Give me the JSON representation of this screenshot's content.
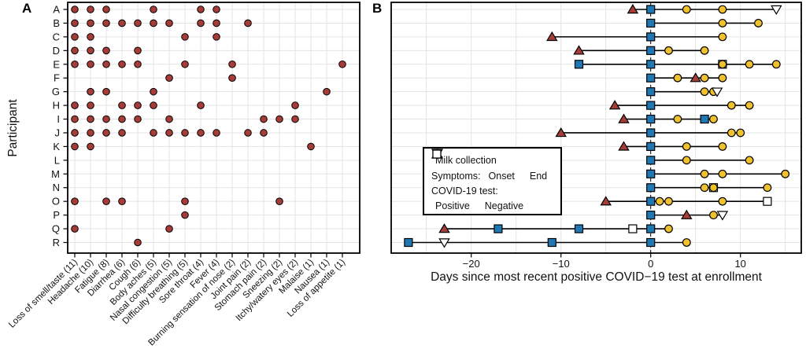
{
  "panels": {
    "a_label": "A",
    "b_label": "B"
  },
  "colors": {
    "symptom_dot": "#A63C38",
    "milk": "#F0C12E",
    "onset": "#A63C38",
    "end_fill": "#FFFFFF",
    "positive": "#1F78B4",
    "negative": "#FFFFFF",
    "outline": "#000000",
    "grid": "#E3E3E3"
  },
  "chart_data": [
    {
      "type": "scatter",
      "title": "",
      "ylabel": "Participant",
      "y_categories": [
        "A",
        "B",
        "C",
        "D",
        "E",
        "F",
        "G",
        "H",
        "I",
        "J",
        "K",
        "L",
        "M",
        "N",
        "O",
        "P",
        "Q",
        "R"
      ],
      "x_categories": [
        "Loss of smell/taste (11)",
        "Headache (10)",
        "Fatigue (8)",
        "Diarrhea (6)",
        "Cough (6)",
        "Body aches (5)",
        "Nasal congestion (5)",
        "Difficulty breathing (5)",
        "Sore throat (4)",
        "Fever (4)",
        "Burning sensation of nose (2)",
        "Joint pain (2)",
        "Stomach pain (2)",
        "Sneezing (2)",
        "Itchy/watery eyes (2)",
        "Malaise (1)",
        "Nausea (1)",
        "Loss of appetite (1)"
      ],
      "points": {
        "A": [
          0,
          1,
          2,
          5,
          8,
          9
        ],
        "B": [
          0,
          1,
          2,
          3,
          4,
          5,
          6,
          8,
          9,
          11
        ],
        "C": [
          0,
          1,
          7,
          9
        ],
        "D": [
          0,
          1,
          2,
          4
        ],
        "E": [
          0,
          1,
          2,
          3,
          4,
          7,
          10,
          17
        ],
        "F": [
          6,
          10
        ],
        "G": [
          1,
          2,
          5,
          16
        ],
        "H": [
          0,
          1,
          3,
          4,
          5,
          8,
          14
        ],
        "I": [
          0,
          1,
          2,
          3,
          4,
          6,
          12,
          13,
          14
        ],
        "J": [
          0,
          1,
          2,
          3,
          5,
          6,
          7,
          8,
          9,
          11,
          12
        ],
        "K": [
          0,
          1,
          15
        ],
        "L": [],
        "M": [],
        "N": [],
        "O": [
          0,
          2,
          3,
          7,
          13
        ],
        "P": [
          7
        ],
        "Q": [
          0,
          6
        ],
        "R": [
          4
        ]
      }
    },
    {
      "type": "timeline",
      "xlabel": "Days since most recent positive COVID−19 test at enrollment",
      "xlim": [
        -28.9,
        16.8
      ],
      "gridline_step_days": 5,
      "zero_reference_line": 0,
      "ticks": [
        {
          "value": -20,
          "label": "−20"
        },
        {
          "value": -10,
          "label": "−10"
        },
        {
          "value": 0,
          "label": "0"
        },
        {
          "value": 10,
          "label": "10"
        }
      ],
      "legend": {
        "milk": "Milk collection",
        "symptoms_label": "Symptoms:",
        "onset": "Onset",
        "end": "End",
        "test_label": "COVID-19 test:",
        "positive": "Positive",
        "negative": "Negative"
      },
      "rows": [
        {
          "participant": "A",
          "milk": [
            4,
            8
          ],
          "onset": [
            -2
          ],
          "end": [
            14
          ],
          "positive": [
            0
          ],
          "negative": []
        },
        {
          "participant": "B",
          "milk": [
            8,
            12
          ],
          "onset": [],
          "end": [],
          "positive": [
            0
          ],
          "negative": []
        },
        {
          "participant": "C",
          "milk": [
            8
          ],
          "onset": [
            -11
          ],
          "end": [],
          "positive": [
            0
          ],
          "negative": []
        },
        {
          "participant": "D",
          "milk": [
            2,
            6
          ],
          "onset": [
            -8
          ],
          "end": [],
          "positive": [
            0
          ],
          "negative": []
        },
        {
          "participant": "E",
          "milk": [
            8,
            11,
            14
          ],
          "onset": [],
          "end": [],
          "positive": [
            -8,
            0
          ],
          "negative": [
            8
          ]
        },
        {
          "participant": "F",
          "milk": [
            3,
            6,
            8
          ],
          "onset": [
            5
          ],
          "end": [],
          "positive": [
            0
          ],
          "negative": []
        },
        {
          "participant": "G",
          "milk": [
            6,
            7
          ],
          "onset": [],
          "end": [
            7.4
          ],
          "positive": [
            0
          ],
          "negative": []
        },
        {
          "participant": "H",
          "milk": [
            9,
            11
          ],
          "onset": [
            -4
          ],
          "end": [],
          "positive": [
            0
          ],
          "negative": []
        },
        {
          "participant": "I",
          "milk": [
            3,
            7
          ],
          "onset": [
            -3
          ],
          "end": [],
          "positive": [
            0,
            6
          ],
          "negative": []
        },
        {
          "participant": "J",
          "milk": [
            9,
            10
          ],
          "onset": [
            -10
          ],
          "end": [],
          "positive": [
            0
          ],
          "negative": []
        },
        {
          "participant": "K",
          "milk": [
            4,
            8
          ],
          "onset": [
            -3
          ],
          "end": [],
          "positive": [
            0
          ],
          "negative": []
        },
        {
          "participant": "L",
          "milk": [
            4,
            11
          ],
          "onset": [],
          "end": [],
          "positive": [
            0
          ],
          "negative": []
        },
        {
          "participant": "M",
          "milk": [
            6,
            8,
            15
          ],
          "onset": [],
          "end": [],
          "positive": [
            0
          ],
          "negative": []
        },
        {
          "participant": "N",
          "milk": [
            6,
            7,
            13
          ],
          "onset": [],
          "end": [],
          "positive": [
            0
          ],
          "negative": [
            7
          ]
        },
        {
          "participant": "O",
          "milk": [
            1,
            2,
            8
          ],
          "onset": [
            -5
          ],
          "end": [],
          "positive": [
            0
          ],
          "negative": [
            13
          ]
        },
        {
          "participant": "P",
          "milk": [
            7
          ],
          "onset": [
            4
          ],
          "end": [
            8
          ],
          "positive": [
            0
          ],
          "negative": []
        },
        {
          "participant": "Q",
          "milk": [
            2
          ],
          "onset": [
            -23
          ],
          "end": [],
          "positive": [
            -17,
            -8,
            0
          ],
          "negative": [
            -2
          ]
        },
        {
          "participant": "R",
          "milk": [
            4
          ],
          "onset": [],
          "end": [
            -23
          ],
          "positive": [
            -27,
            -11,
            0
          ],
          "negative": []
        }
      ]
    }
  ]
}
